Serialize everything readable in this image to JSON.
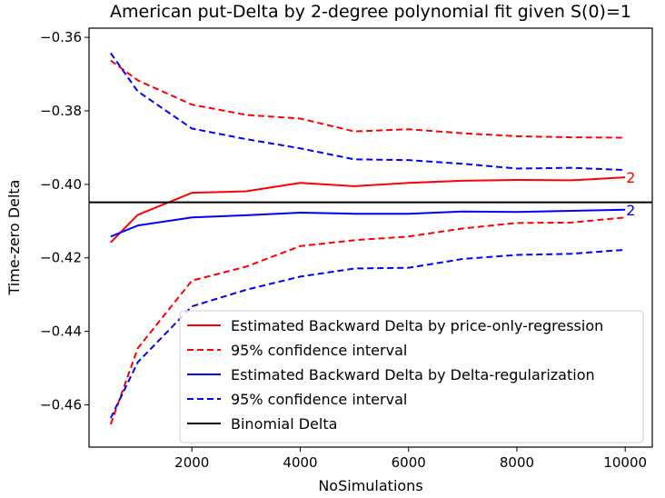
{
  "chart_data": {
    "type": "line",
    "title": "American put-Delta by 2-degree polynomial fit given S(0)=1",
    "xlabel": "NoSimulations",
    "ylabel": "Time-zero Delta",
    "xlim": [
      100,
      10500
    ],
    "ylim": [
      -0.4715,
      -0.3575
    ],
    "xticks": [
      2000,
      4000,
      6000,
      8000,
      10000
    ],
    "xtick_labels": [
      "2000",
      "4000",
      "6000",
      "8000",
      "10000"
    ],
    "yticks": [
      -0.36,
      -0.38,
      -0.4,
      -0.42,
      -0.44,
      -0.46
    ],
    "ytick_labels": [
      "−0.36",
      "−0.38",
      "−0.40",
      "−0.42",
      "−0.44",
      "−0.46"
    ],
    "legend_position": "lower-right",
    "x": [
      500,
      1000,
      2000,
      3000,
      4000,
      5000,
      6000,
      7000,
      8000,
      9000,
      10000
    ],
    "series": [
      {
        "name": "Estimated Backward Delta by price-only-regression",
        "color": "#ff0000",
        "style": "solid",
        "values": [
          -0.4158,
          -0.4083,
          -0.4023,
          -0.4019,
          -0.3996,
          -0.4005,
          -0.3996,
          -0.399,
          -0.3988,
          -0.3989,
          -0.3981
        ],
        "end_label": "2"
      },
      {
        "name": "95% confidence interval",
        "color": "#ff0000",
        "style": "dashed",
        "values": [
          -0.3663,
          -0.3717,
          -0.3783,
          -0.3811,
          -0.3821,
          -0.3856,
          -0.385,
          -0.3861,
          -0.3869,
          -0.3872,
          -0.3873
        ]
      },
      {
        "name": "",
        "color": "#ff0000",
        "style": "dashed",
        "values": [
          -0.4653,
          -0.4446,
          -0.4262,
          -0.4224,
          -0.4168,
          -0.4152,
          -0.4142,
          -0.412,
          -0.4105,
          -0.4104,
          -0.409
        ]
      },
      {
        "name": "Estimated Backward Delta by Delta-regularization",
        "color": "#0000ff",
        "style": "solid",
        "values": [
          -0.4142,
          -0.4112,
          -0.409,
          -0.4084,
          -0.4077,
          -0.408,
          -0.408,
          -0.4074,
          -0.4075,
          -0.4072,
          -0.4069
        ],
        "end_label": "2"
      },
      {
        "name": "95% confidence interval",
        "color": "#0000ff",
        "style": "dashed",
        "values": [
          -0.3643,
          -0.3747,
          -0.3848,
          -0.3877,
          -0.3902,
          -0.3932,
          -0.3934,
          -0.3944,
          -0.3957,
          -0.3955,
          -0.3961
        ]
      },
      {
        "name": "",
        "color": "#0000ff",
        "style": "dashed",
        "values": [
          -0.4636,
          -0.4484,
          -0.4332,
          -0.4287,
          -0.4251,
          -0.4229,
          -0.4227,
          -0.4203,
          -0.4192,
          -0.4189,
          -0.4178
        ]
      },
      {
        "name": "Binomial Delta",
        "color": "#000000",
        "style": "hline",
        "y": -0.4049
      }
    ]
  }
}
